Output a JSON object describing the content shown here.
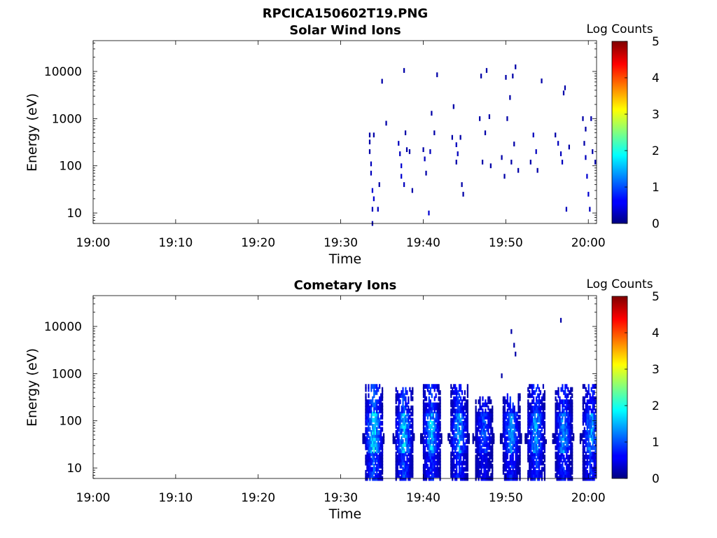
{
  "figure_title": "RPCICA150602T19.PNG",
  "colorbar": {
    "label": "Log Counts",
    "ticks": [
      "0",
      "1",
      "2",
      "3",
      "4",
      "5"
    ],
    "colormap": "jet"
  },
  "chart_data": [
    {
      "type": "heatmap",
      "title": "Solar Wind Ions",
      "xlabel": "Time",
      "ylabel": "Energy (eV)",
      "xtick_labels": [
        "19:00",
        "19:10",
        "19:20",
        "19:30",
        "19:40",
        "19:50",
        "20:00"
      ],
      "ytick_labels": [
        "10",
        "100",
        "1000",
        "10000"
      ],
      "x_range": [
        "19:00",
        "20:01"
      ],
      "y_scale": "log",
      "y_range": [
        6,
        45000
      ],
      "colorbar_range": [
        0,
        5
      ],
      "cells": [
        [
          "19:33:30",
          450,
          0.2
        ],
        [
          "19:33:30",
          320,
          0.2
        ],
        [
          "19:33:30",
          200,
          0.2
        ],
        [
          "19:33:40",
          110,
          0.3
        ],
        [
          "19:33:40",
          70,
          0.3
        ],
        [
          "19:33:50",
          30,
          0.4
        ],
        [
          "19:34:00",
          20,
          0.4
        ],
        [
          "19:33:50",
          12,
          0.3
        ],
        [
          "19:34:30",
          12,
          0.3
        ],
        [
          "19:34:00",
          450,
          0.2
        ],
        [
          "19:34:40",
          40,
          0.2
        ],
        [
          "19:35:00",
          6200,
          0.2
        ],
        [
          "19:35:30",
          800,
          0.2
        ],
        [
          "19:37:00",
          300,
          0.3
        ],
        [
          "19:37:10",
          180,
          0.3
        ],
        [
          "19:37:20",
          100,
          0.4
        ],
        [
          "19:37:20",
          60,
          0.4
        ],
        [
          "19:37:40",
          40,
          0.3
        ],
        [
          "19:37:50",
          500,
          0.2
        ],
        [
          "19:37:40",
          10500,
          0.2
        ],
        [
          "19:38:20",
          200,
          0.2
        ],
        [
          "19:38:40",
          30,
          0.2
        ],
        [
          "19:38:00",
          220,
          0.2
        ],
        [
          "19:40:00",
          220,
          0.2
        ],
        [
          "19:40:10",
          140,
          0.3
        ],
        [
          "19:40:20",
          70,
          0.2
        ],
        [
          "19:40:40",
          10,
          0.4
        ],
        [
          "19:40:50",
          200,
          0.3
        ],
        [
          "19:41:00",
          1300,
          0.2
        ],
        [
          "19:41:20",
          500,
          0.2
        ],
        [
          "19:41:40",
          8500,
          0.2
        ],
        [
          "19:43:30",
          400,
          0.2
        ],
        [
          "19:43:40",
          1800,
          0.2
        ],
        [
          "19:44:00",
          280,
          0.3
        ],
        [
          "19:44:10",
          180,
          0.3
        ],
        [
          "19:44:00",
          120,
          0.2
        ],
        [
          "19:44:30",
          400,
          0.2
        ],
        [
          "19:44:40",
          40,
          0.2
        ],
        [
          "19:44:50",
          25,
          0.2
        ],
        [
          "19:46:50",
          1000,
          0.2
        ],
        [
          "19:47:00",
          8000,
          0.2
        ],
        [
          "19:47:10",
          120,
          0.2
        ],
        [
          "19:47:40",
          10500,
          0.2
        ],
        [
          "19:47:30",
          500,
          0.2
        ],
        [
          "19:48:00",
          1100,
          0.2
        ],
        [
          "19:48:10",
          100,
          0.2
        ],
        [
          "19:49:30",
          150,
          0.2
        ],
        [
          "19:49:50",
          60,
          0.2
        ],
        [
          "19:50:00",
          7500,
          0.2
        ],
        [
          "19:50:10",
          1000,
          0.2
        ],
        [
          "19:50:30",
          2800,
          0.2
        ],
        [
          "19:50:40",
          120,
          0.2
        ],
        [
          "19:50:50",
          8000,
          0.2
        ],
        [
          "19:51:00",
          290,
          0.2
        ],
        [
          "19:51:10",
          12500,
          0.2
        ],
        [
          "19:51:30",
          80,
          0.2
        ],
        [
          "19:53:00",
          120,
          0.2
        ],
        [
          "19:53:20",
          450,
          0.3
        ],
        [
          "19:53:40",
          200,
          0.3
        ],
        [
          "19:53:50",
          80,
          0.2
        ],
        [
          "19:54:20",
          6300,
          0.2
        ],
        [
          "19:56:00",
          450,
          0.2
        ],
        [
          "19:56:20",
          300,
          0.3
        ],
        [
          "19:56:40",
          180,
          0.3
        ],
        [
          "19:56:50",
          120,
          0.3
        ],
        [
          "19:57:00",
          3500,
          0.2
        ],
        [
          "19:57:10",
          4500,
          0.2
        ],
        [
          "19:57:20",
          12,
          0.3
        ],
        [
          "19:57:40",
          250,
          0.2
        ],
        [
          "19:59:30",
          300,
          0.2
        ],
        [
          "19:59:40",
          150,
          0.3
        ],
        [
          "19:59:50",
          60,
          0.4
        ],
        [
          "20:00:00",
          25,
          0.4
        ],
        [
          "20:00:10",
          12,
          0.3
        ],
        [
          "19:59:40",
          600,
          0.2
        ],
        [
          "20:00:20",
          1000,
          0.2
        ],
        [
          "20:00:30",
          200,
          0.2
        ],
        [
          "20:00:50",
          120,
          0.2
        ],
        [
          "19:59:20",
          1000,
          0.2
        ],
        [
          "19:33:50",
          6,
          0.2
        ]
      ]
    },
    {
      "type": "heatmap",
      "title": "Cometary Ions",
      "xlabel": "Time",
      "ylabel": "Energy (eV)",
      "xtick_labels": [
        "19:00",
        "19:10",
        "19:20",
        "19:30",
        "19:40",
        "19:50",
        "20:00"
      ],
      "ytick_labels": [
        "10",
        "100",
        "1000",
        "10000"
      ],
      "x_range": [
        "19:00",
        "20:01"
      ],
      "y_scale": "log",
      "y_range": [
        6,
        45000
      ],
      "colorbar_range": [
        0,
        5
      ],
      "bursts": [
        {
          "center": "19:34:00",
          "e_max": 600,
          "peak": 2.1
        },
        {
          "center": "19:37:40",
          "e_max": 480,
          "peak": 1.9
        },
        {
          "center": "19:41:00",
          "e_max": 560,
          "peak": 1.8
        },
        {
          "center": "19:44:20",
          "e_max": 600,
          "peak": 1.6
        },
        {
          "center": "19:47:20",
          "e_max": 320,
          "peak": 1.2
        },
        {
          "center": "19:50:40",
          "e_max": 380,
          "peak": 1.6
        },
        {
          "center": "19:53:40",
          "e_max": 600,
          "peak": 1.7
        },
        {
          "center": "19:57:00",
          "e_max": 600,
          "peak": 1.6
        },
        {
          "center": "20:00:20",
          "e_max": 600,
          "peak": 1.6
        }
      ],
      "cells": [
        [
          "19:50:40",
          7800,
          0.2
        ],
        [
          "19:51:00",
          4000,
          0.2
        ],
        [
          "19:51:10",
          2600,
          0.2
        ],
        [
          "19:49:30",
          900,
          0.2
        ],
        [
          "19:56:40",
          13500,
          0.2
        ]
      ]
    }
  ]
}
